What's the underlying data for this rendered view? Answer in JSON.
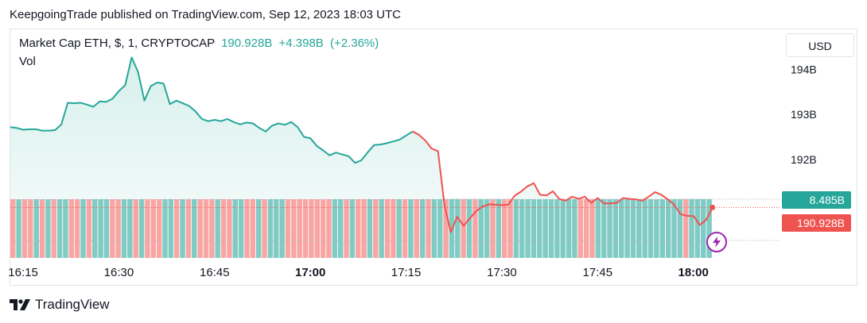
{
  "header": {
    "published_note": "KeepgoingTrade published on TradingView.com, Sep 12, 2023 18:03 UTC"
  },
  "legend": {
    "symbol": "Market Cap ETH, $, 1, CRYPTOCAP",
    "last_value": "190.928B",
    "change": "+4.398B",
    "change_pct": "(+2.36%)",
    "volume_label": "Vol"
  },
  "currency_button": "USD",
  "brand": {
    "name": "TradingView"
  },
  "colors": {
    "line": "#26a69a",
    "line_down": "#ef5350",
    "area_top": "#d7f0ec",
    "vol_up": "#80cbc4",
    "vol_down": "#f7a6a4",
    "price_tag": "#ef5350",
    "vol_tag": "#26a69a",
    "flash_icon": "#9c27b0"
  },
  "icons": {
    "brand_logo": "tradingview-logo-icon",
    "flash": "lightning-icon"
  },
  "chart_data": {
    "type": "line",
    "y_unit": "B",
    "ylim": [
      190.3,
      194.4
    ],
    "y_ticks": [
      {
        "value": 194,
        "label": "194B"
      },
      {
        "value": 193,
        "label": "193B"
      },
      {
        "value": 192,
        "label": "192B"
      }
    ],
    "x_ticks": [
      {
        "time": "16:15",
        "label": "16:15",
        "bold": false
      },
      {
        "time": "16:30",
        "label": "16:30",
        "bold": false
      },
      {
        "time": "16:45",
        "label": "16:45",
        "bold": false
      },
      {
        "time": "17:00",
        "label": "17:00",
        "bold": true
      },
      {
        "time": "17:15",
        "label": "17:15",
        "bold": false
      },
      {
        "time": "17:30",
        "label": "17:30",
        "bold": false
      },
      {
        "time": "17:45",
        "label": "17:45",
        "bold": false
      },
      {
        "time": "18:00",
        "label": "18:00",
        "bold": true
      }
    ],
    "x_range": [
      "16:13",
      "18:13"
    ],
    "series": [
      {
        "split_time": "17:16",
        "points": [
          [
            "16:13",
            192.72
          ],
          [
            "16:14",
            192.7
          ],
          [
            "16:15",
            192.66
          ],
          [
            "16:16",
            192.67
          ],
          [
            "16:17",
            192.67
          ],
          [
            "16:18",
            192.64
          ],
          [
            "16:19",
            192.64
          ],
          [
            "16:20",
            192.65
          ],
          [
            "16:21",
            192.78
          ],
          [
            "16:22",
            193.26
          ],
          [
            "16:23",
            193.25
          ],
          [
            "16:24",
            193.26
          ],
          [
            "16:25",
            193.22
          ],
          [
            "16:26",
            193.17
          ],
          [
            "16:27",
            193.29
          ],
          [
            "16:28",
            193.28
          ],
          [
            "16:29",
            193.35
          ],
          [
            "16:30",
            193.52
          ],
          [
            "16:31",
            193.65
          ],
          [
            "16:32",
            194.27
          ],
          [
            "16:33",
            193.95
          ],
          [
            "16:34",
            193.31
          ],
          [
            "16:35",
            193.63
          ],
          [
            "16:36",
            193.71
          ],
          [
            "16:37",
            193.69
          ],
          [
            "16:38",
            193.23
          ],
          [
            "16:39",
            193.31
          ],
          [
            "16:40",
            193.25
          ],
          [
            "16:41",
            193.19
          ],
          [
            "16:42",
            193.07
          ],
          [
            "16:43",
            192.9
          ],
          [
            "16:44",
            192.85
          ],
          [
            "16:45",
            192.88
          ],
          [
            "16:46",
            192.85
          ],
          [
            "16:47",
            192.9
          ],
          [
            "16:48",
            192.83
          ],
          [
            "16:49",
            192.78
          ],
          [
            "16:50",
            192.82
          ],
          [
            "16:51",
            192.8
          ],
          [
            "16:52",
            192.7
          ],
          [
            "16:53",
            192.62
          ],
          [
            "16:54",
            192.75
          ],
          [
            "16:55",
            192.8
          ],
          [
            "16:56",
            192.77
          ],
          [
            "16:57",
            192.83
          ],
          [
            "16:58",
            192.72
          ],
          [
            "16:59",
            192.5
          ],
          [
            "17:00",
            192.47
          ],
          [
            "17:01",
            192.3
          ],
          [
            "17:02",
            192.2
          ],
          [
            "17:03",
            192.09
          ],
          [
            "17:04",
            192.15
          ],
          [
            "17:05",
            192.11
          ],
          [
            "17:06",
            192.07
          ],
          [
            "17:07",
            191.92
          ],
          [
            "17:08",
            191.98
          ],
          [
            "17:09",
            192.16
          ],
          [
            "17:10",
            192.32
          ],
          [
            "17:11",
            192.33
          ],
          [
            "17:12",
            192.36
          ],
          [
            "17:13",
            192.4
          ],
          [
            "17:14",
            192.44
          ],
          [
            "17:15",
            192.53
          ],
          [
            "17:16",
            192.62
          ]
        ]
      },
      {
        "points": [
          [
            "17:16",
            192.62
          ],
          [
            "17:17",
            192.55
          ],
          [
            "17:18",
            192.42
          ],
          [
            "17:19",
            192.24
          ],
          [
            "17:20",
            192.18
          ],
          [
            "17:21",
            190.99
          ],
          [
            "17:22",
            190.38
          ],
          [
            "17:23",
            190.72
          ],
          [
            "17:24",
            190.52
          ],
          [
            "17:25",
            190.69
          ],
          [
            "17:26",
            190.85
          ],
          [
            "17:27",
            190.95
          ],
          [
            "17:28",
            191.0
          ],
          [
            "17:29",
            190.99
          ],
          [
            "17:30",
            190.98
          ],
          [
            "17:31",
            190.99
          ],
          [
            "17:32",
            191.19
          ],
          [
            "17:33",
            191.28
          ],
          [
            "17:34",
            191.4
          ],
          [
            "17:35",
            191.47
          ],
          [
            "17:36",
            191.21
          ],
          [
            "17:37",
            191.2
          ],
          [
            "17:38",
            191.29
          ],
          [
            "17:39",
            191.12
          ],
          [
            "17:40",
            191.08
          ],
          [
            "17:41",
            191.17
          ],
          [
            "17:42",
            191.12
          ],
          [
            "17:43",
            191.17
          ],
          [
            "17:44",
            191.03
          ],
          [
            "17:45",
            191.14
          ],
          [
            "17:46",
            191.02
          ],
          [
            "17:47",
            191.02
          ],
          [
            "17:48",
            191.03
          ],
          [
            "17:49",
            191.14
          ],
          [
            "17:50",
            191.12
          ],
          [
            "17:51",
            191.11
          ],
          [
            "17:52",
            191.08
          ],
          [
            "17:53",
            191.17
          ],
          [
            "17:54",
            191.27
          ],
          [
            "17:55",
            191.21
          ],
          [
            "17:56",
            191.11
          ],
          [
            "17:57",
            190.99
          ],
          [
            "17:58",
            190.78
          ],
          [
            "17:59",
            190.74
          ],
          [
            "18:00",
            190.74
          ],
          [
            "18:01",
            190.54
          ],
          [
            "18:02",
            190.65
          ],
          [
            "18:03",
            190.93
          ]
        ]
      }
    ],
    "volume": {
      "start_time": "16:13",
      "end_time": "18:03",
      "bar_count": 120,
      "up_bars": [
        1,
        4,
        6,
        8,
        9,
        12,
        14,
        15,
        16,
        19,
        20,
        22,
        26,
        27,
        29,
        31,
        35,
        38,
        39,
        42,
        44,
        45,
        46,
        55,
        56,
        58,
        61,
        63,
        66,
        68,
        70,
        72,
        73,
        75,
        76,
        78,
        80,
        81,
        83,
        86,
        87,
        88,
        89,
        90,
        91,
        92,
        93,
        94,
        95,
        96,
        100,
        101,
        102,
        103,
        104,
        105,
        106,
        107,
        108,
        109,
        110,
        111,
        112,
        113,
        114,
        116,
        117,
        118,
        119
      ]
    },
    "price_tag": "190.928B",
    "volume_tag": "8.485B",
    "grid": false
  }
}
